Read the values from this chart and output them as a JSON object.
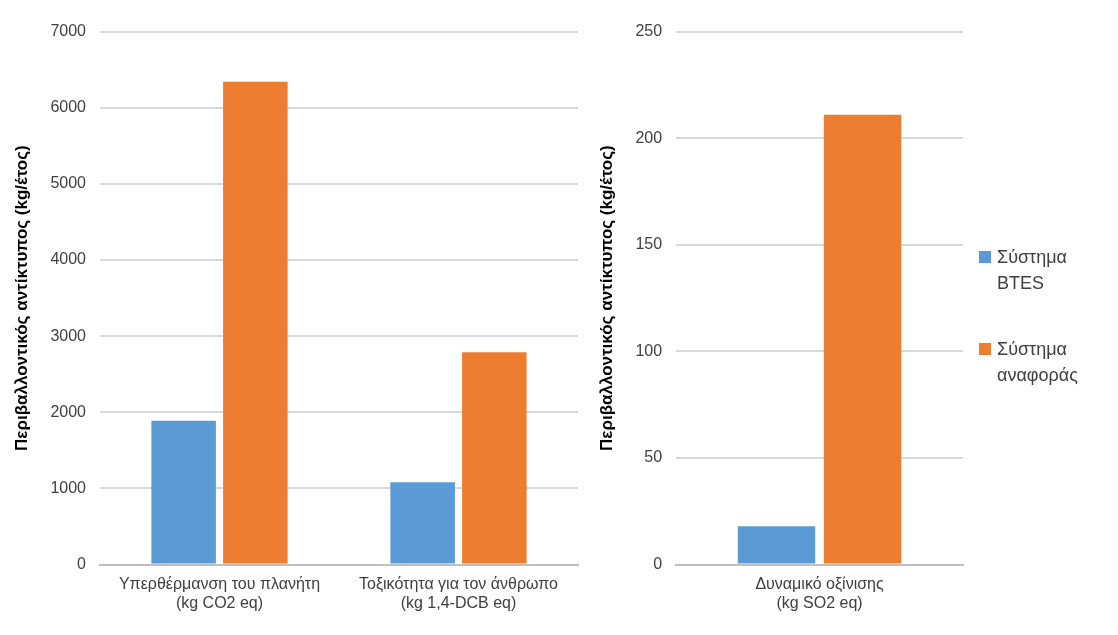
{
  "chart_data": [
    {
      "type": "bar",
      "ylabel": "Περιβαλλοντικός αντίκτυπος (kg/έτος)",
      "categories": [
        "Υπερθέρμανση του πλανήτη (kg CO2 eq)",
        "Τοξικότητα για τον άνθρωπο (kg 1,4-DCB eq)"
      ],
      "series": [
        {
          "color": "#5b9bd5",
          "values": [
            1890,
            1080
          ]
        },
        {
          "color": "#ed7d31",
          "values": [
            6340,
            2790
          ]
        }
      ],
      "ylim": [
        0,
        7000
      ],
      "yticks": [
        0,
        1000,
        2000,
        3000,
        4000,
        5000,
        6000,
        7000
      ],
      "grid": "y",
      "legend": false
    },
    {
      "type": "bar",
      "ylabel": "Περιβαλλοντικός αντίκτυπος (kg/έτος)",
      "categories": [
        "Δυναμικό οξίνισης (kg SO2 eq)"
      ],
      "series": [
        {
          "name": "Σύστημα BTES",
          "color": "#5b9bd5",
          "values": [
            18
          ]
        },
        {
          "name": "Σύστημα αναφοράς",
          "color": "#ed7d31",
          "values": [
            211
          ]
        }
      ],
      "ylim": [
        0,
        250
      ],
      "yticks": [
        0,
        50,
        100,
        150,
        200,
        250
      ],
      "grid": "y",
      "legend": "right"
    }
  ]
}
